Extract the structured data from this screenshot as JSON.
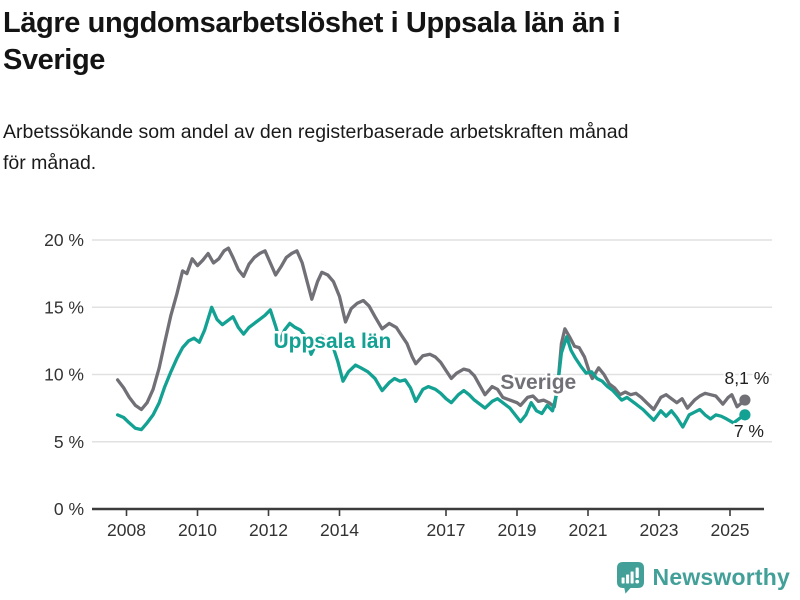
{
  "header": {
    "title_lines": [
      "Lägre ungdomsarbetslöshet i Uppsala län än i",
      "Sverige"
    ],
    "subtitle_lines": [
      "Arbetssökande som andel av den registerbaserade arbetskraften månad",
      "för månad."
    ]
  },
  "footer": {
    "brand": "Newsworthy",
    "logo_icon": "bar-chart-speech-bubble",
    "brand_color": "#43A099"
  },
  "chart_data": {
    "type": "line",
    "title": "Lägre ungdomsarbetslöshet i Uppsala län än i Sverige",
    "subtitle": "Arbetssökande som andel av den registerbaserade arbetskraften månad för månad.",
    "unit": "%",
    "grid": "horizontal",
    "legend_position": "inline-labels",
    "colors": {
      "grid": "#e1e1e1",
      "axis": "#3c3c3c",
      "tick_text": "#333333",
      "annotation_text": "#222222"
    },
    "x_axis": {
      "range": [
        2007.7,
        2026.1
      ],
      "ticks": [
        {
          "v": 2008,
          "label": "2008"
        },
        {
          "v": 2010,
          "label": "2010"
        },
        {
          "v": 2012,
          "label": "2012"
        },
        {
          "v": 2014,
          "label": "2014"
        },
        {
          "v": 2017,
          "label": "2017"
        },
        {
          "v": 2019,
          "label": "2019"
        },
        {
          "v": 2021,
          "label": "2021"
        },
        {
          "v": 2023,
          "label": "2023"
        },
        {
          "v": 2025,
          "label": "2025"
        }
      ]
    },
    "y_axis": {
      "range": [
        0,
        21
      ],
      "ticks": [
        {
          "v": 0,
          "label": "0 %"
        },
        {
          "v": 5,
          "label": "5 %"
        },
        {
          "v": 10,
          "label": "10 %"
        },
        {
          "v": 15,
          "label": "15 %"
        },
        {
          "v": 20,
          "label": "20 %"
        }
      ]
    },
    "series": [
      {
        "id": "sverige",
        "name": "Sverige",
        "color": "#717076",
        "name_label": {
          "text": "Sverige",
          "x": 2019.6,
          "y": 9.45
        },
        "end_label": {
          "text": "8,1 %",
          "dx": 2,
          "dy": -16
        },
        "end_value": 8.1,
        "points": [
          [
            2007.75,
            9.6
          ],
          [
            2007.92,
            9.0
          ],
          [
            2008.08,
            8.3
          ],
          [
            2008.25,
            7.7
          ],
          [
            2008.42,
            7.4
          ],
          [
            2008.58,
            7.9
          ],
          [
            2008.75,
            8.9
          ],
          [
            2008.92,
            10.5
          ],
          [
            2009.08,
            12.4
          ],
          [
            2009.25,
            14.4
          ],
          [
            2009.42,
            16.0
          ],
          [
            2009.58,
            17.7
          ],
          [
            2009.7,
            17.5
          ],
          [
            2009.85,
            18.6
          ],
          [
            2010.0,
            18.1
          ],
          [
            2010.15,
            18.5
          ],
          [
            2010.3,
            19.0
          ],
          [
            2010.45,
            18.3
          ],
          [
            2010.6,
            18.6
          ],
          [
            2010.75,
            19.2
          ],
          [
            2010.87,
            19.4
          ],
          [
            2011.0,
            18.7
          ],
          [
            2011.15,
            17.8
          ],
          [
            2011.3,
            17.3
          ],
          [
            2011.45,
            18.2
          ],
          [
            2011.6,
            18.7
          ],
          [
            2011.75,
            19.0
          ],
          [
            2011.9,
            19.2
          ],
          [
            2012.05,
            18.3
          ],
          [
            2012.2,
            17.4
          ],
          [
            2012.35,
            18.0
          ],
          [
            2012.5,
            18.7
          ],
          [
            2012.65,
            19.0
          ],
          [
            2012.8,
            19.2
          ],
          [
            2012.95,
            18.3
          ],
          [
            2013.1,
            16.8
          ],
          [
            2013.22,
            15.6
          ],
          [
            2013.38,
            16.9
          ],
          [
            2013.5,
            17.6
          ],
          [
            2013.67,
            17.4
          ],
          [
            2013.83,
            16.9
          ],
          [
            2014.0,
            15.8
          ],
          [
            2014.17,
            13.9
          ],
          [
            2014.33,
            14.9
          ],
          [
            2014.5,
            15.3
          ],
          [
            2014.67,
            15.5
          ],
          [
            2014.83,
            15.1
          ],
          [
            2015.0,
            14.3
          ],
          [
            2015.2,
            13.4
          ],
          [
            2015.4,
            13.8
          ],
          [
            2015.6,
            13.5
          ],
          [
            2015.75,
            12.9
          ],
          [
            2015.9,
            12.3
          ],
          [
            2016.05,
            11.3
          ],
          [
            2016.15,
            10.8
          ],
          [
            2016.35,
            11.4
          ],
          [
            2016.55,
            11.5
          ],
          [
            2016.7,
            11.3
          ],
          [
            2016.85,
            10.9
          ],
          [
            2017.0,
            10.3
          ],
          [
            2017.15,
            9.7
          ],
          [
            2017.3,
            10.1
          ],
          [
            2017.5,
            10.4
          ],
          [
            2017.65,
            10.3
          ],
          [
            2017.8,
            9.9
          ],
          [
            2017.95,
            9.2
          ],
          [
            2018.1,
            8.5
          ],
          [
            2018.3,
            9.1
          ],
          [
            2018.45,
            8.9
          ],
          [
            2018.6,
            8.3
          ],
          [
            2018.8,
            8.1
          ],
          [
            2019.0,
            7.9
          ],
          [
            2019.1,
            7.7
          ],
          [
            2019.3,
            8.3
          ],
          [
            2019.45,
            8.4
          ],
          [
            2019.6,
            8.0
          ],
          [
            2019.75,
            8.1
          ],
          [
            2019.9,
            7.9
          ],
          [
            2020.05,
            7.6
          ],
          [
            2020.15,
            9.2
          ],
          [
            2020.25,
            12.3
          ],
          [
            2020.35,
            13.4
          ],
          [
            2020.5,
            12.7
          ],
          [
            2020.62,
            12.1
          ],
          [
            2020.75,
            12.0
          ],
          [
            2020.9,
            11.3
          ],
          [
            2021.05,
            10.1
          ],
          [
            2021.12,
            9.7
          ],
          [
            2021.3,
            10.5
          ],
          [
            2021.45,
            10.0
          ],
          [
            2021.6,
            9.3
          ],
          [
            2021.75,
            9.0
          ],
          [
            2021.9,
            8.5
          ],
          [
            2022.05,
            8.7
          ],
          [
            2022.2,
            8.5
          ],
          [
            2022.35,
            8.6
          ],
          [
            2022.5,
            8.3
          ],
          [
            2022.65,
            7.9
          ],
          [
            2022.85,
            7.4
          ],
          [
            2023.05,
            8.3
          ],
          [
            2023.2,
            8.5
          ],
          [
            2023.35,
            8.2
          ],
          [
            2023.5,
            7.9
          ],
          [
            2023.65,
            8.2
          ],
          [
            2023.8,
            7.5
          ],
          [
            2024.0,
            8.1
          ],
          [
            2024.15,
            8.4
          ],
          [
            2024.3,
            8.6
          ],
          [
            2024.45,
            8.5
          ],
          [
            2024.6,
            8.4
          ],
          [
            2024.8,
            7.8
          ],
          [
            2024.95,
            8.3
          ],
          [
            2025.05,
            8.5
          ],
          [
            2025.2,
            7.6
          ],
          [
            2025.42,
            8.1
          ]
        ]
      },
      {
        "id": "uppsala-lan",
        "name": "Uppsala län",
        "color": "#12A192",
        "name_label": {
          "text": "Uppsala län",
          "x": 2013.8,
          "y": 12.5
        },
        "end_label": {
          "text": "7 %",
          "dx": 4,
          "dy": 22
        },
        "end_value": 7.0,
        "points": [
          [
            2007.75,
            7.0
          ],
          [
            2007.92,
            6.8
          ],
          [
            2008.08,
            6.4
          ],
          [
            2008.25,
            6.0
          ],
          [
            2008.42,
            5.9
          ],
          [
            2008.58,
            6.4
          ],
          [
            2008.75,
            7.0
          ],
          [
            2008.92,
            7.9
          ],
          [
            2009.08,
            9.1
          ],
          [
            2009.25,
            10.2
          ],
          [
            2009.42,
            11.2
          ],
          [
            2009.58,
            12.0
          ],
          [
            2009.75,
            12.5
          ],
          [
            2009.9,
            12.7
          ],
          [
            2010.05,
            12.4
          ],
          [
            2010.2,
            13.3
          ],
          [
            2010.4,
            15.0
          ],
          [
            2010.55,
            14.1
          ],
          [
            2010.7,
            13.7
          ],
          [
            2010.85,
            14.0
          ],
          [
            2011.0,
            14.3
          ],
          [
            2011.15,
            13.5
          ],
          [
            2011.3,
            13.0
          ],
          [
            2011.45,
            13.5
          ],
          [
            2011.6,
            13.8
          ],
          [
            2011.75,
            14.1
          ],
          [
            2011.9,
            14.4
          ],
          [
            2012.05,
            14.8
          ],
          [
            2012.2,
            13.6
          ],
          [
            2012.32,
            12.5
          ],
          [
            2012.45,
            13.3
          ],
          [
            2012.6,
            13.8
          ],
          [
            2012.75,
            13.5
          ],
          [
            2012.9,
            13.3
          ],
          [
            2013.05,
            12.8
          ],
          [
            2013.2,
            11.5
          ],
          [
            2013.35,
            12.3
          ],
          [
            2013.5,
            12.9
          ],
          [
            2013.65,
            12.7
          ],
          [
            2013.8,
            12.2
          ],
          [
            2013.95,
            11.0
          ],
          [
            2014.1,
            9.5
          ],
          [
            2014.25,
            10.2
          ],
          [
            2014.45,
            10.7
          ],
          [
            2014.6,
            10.5
          ],
          [
            2014.8,
            10.2
          ],
          [
            2015.0,
            9.7
          ],
          [
            2015.2,
            8.8
          ],
          [
            2015.4,
            9.4
          ],
          [
            2015.55,
            9.7
          ],
          [
            2015.7,
            9.5
          ],
          [
            2015.85,
            9.6
          ],
          [
            2016.0,
            9.0
          ],
          [
            2016.15,
            8.0
          ],
          [
            2016.35,
            8.9
          ],
          [
            2016.5,
            9.1
          ],
          [
            2016.7,
            8.9
          ],
          [
            2016.85,
            8.6
          ],
          [
            2017.0,
            8.2
          ],
          [
            2017.15,
            7.9
          ],
          [
            2017.35,
            8.5
          ],
          [
            2017.5,
            8.8
          ],
          [
            2017.65,
            8.5
          ],
          [
            2017.8,
            8.1
          ],
          [
            2017.95,
            7.8
          ],
          [
            2018.1,
            7.5
          ],
          [
            2018.3,
            8.0
          ],
          [
            2018.45,
            8.2
          ],
          [
            2018.6,
            7.9
          ],
          [
            2018.8,
            7.5
          ],
          [
            2018.95,
            7.0
          ],
          [
            2019.1,
            6.5
          ],
          [
            2019.25,
            7.0
          ],
          [
            2019.4,
            7.9
          ],
          [
            2019.55,
            7.3
          ],
          [
            2019.7,
            7.1
          ],
          [
            2019.85,
            7.7
          ],
          [
            2020.0,
            7.3
          ],
          [
            2020.12,
            8.6
          ],
          [
            2020.25,
            11.6
          ],
          [
            2020.4,
            12.8
          ],
          [
            2020.52,
            11.8
          ],
          [
            2020.65,
            11.2
          ],
          [
            2020.8,
            10.6
          ],
          [
            2020.95,
            10.1
          ],
          [
            2021.1,
            10.2
          ],
          [
            2021.25,
            9.7
          ],
          [
            2021.4,
            9.5
          ],
          [
            2021.55,
            9.1
          ],
          [
            2021.7,
            8.8
          ],
          [
            2021.95,
            8.1
          ],
          [
            2022.1,
            8.3
          ],
          [
            2022.25,
            8.0
          ],
          [
            2022.4,
            7.7
          ],
          [
            2022.55,
            7.4
          ],
          [
            2022.7,
            7.0
          ],
          [
            2022.85,
            6.6
          ],
          [
            2023.05,
            7.3
          ],
          [
            2023.2,
            6.9
          ],
          [
            2023.35,
            7.3
          ],
          [
            2023.5,
            6.8
          ],
          [
            2023.67,
            6.1
          ],
          [
            2023.85,
            7.0
          ],
          [
            2024.0,
            7.2
          ],
          [
            2024.15,
            7.4
          ],
          [
            2024.3,
            7.0
          ],
          [
            2024.45,
            6.7
          ],
          [
            2024.6,
            7.0
          ],
          [
            2024.75,
            6.9
          ],
          [
            2024.9,
            6.7
          ],
          [
            2025.1,
            6.4
          ],
          [
            2025.25,
            6.7
          ],
          [
            2025.42,
            7.0
          ]
        ]
      }
    ]
  }
}
